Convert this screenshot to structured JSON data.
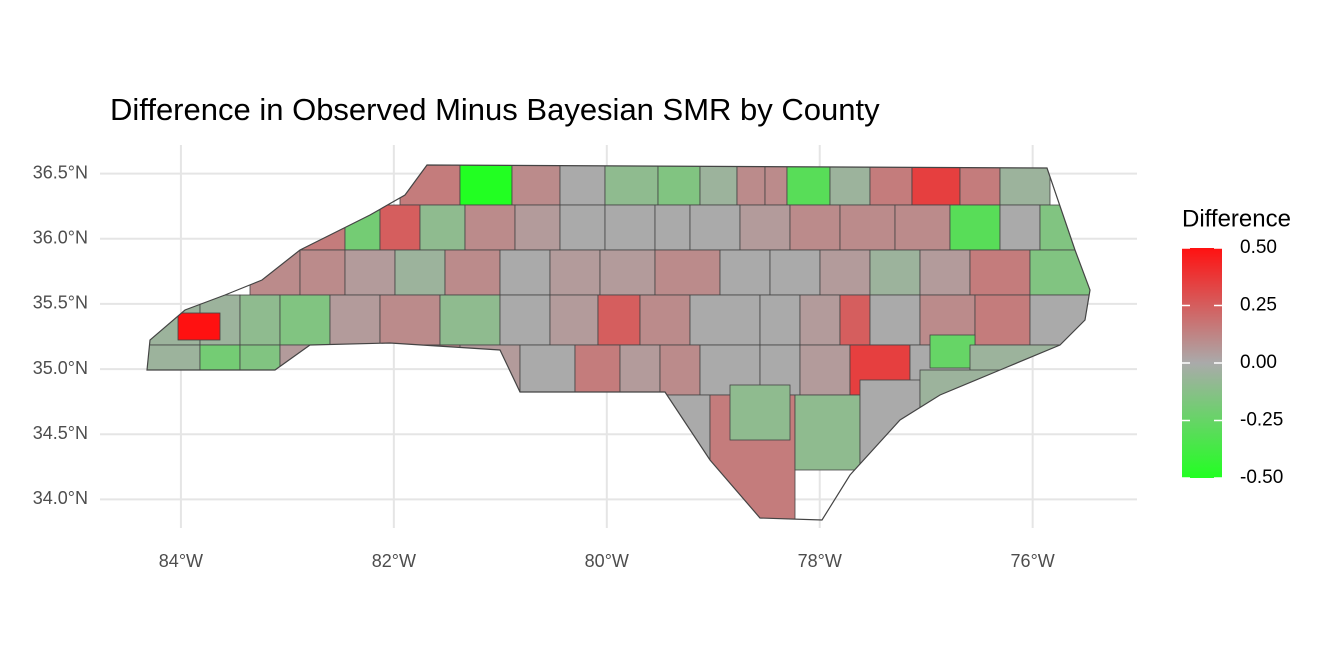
{
  "chart_data": {
    "type": "choropleth",
    "title": "Difference in Observed Minus Bayesian SMR by County",
    "legend_title": "Difference",
    "xlim": [
      -84.76,
      -75.02
    ],
    "ylim": [
      33.78,
      36.72
    ],
    "xticks": [
      {
        "value": -84,
        "label": "84°W"
      },
      {
        "value": -82,
        "label": "82°W"
      },
      {
        "value": -80,
        "label": "80°W"
      },
      {
        "value": -78,
        "label": "78°W"
      },
      {
        "value": -76,
        "label": "76°W"
      }
    ],
    "yticks": [
      {
        "value": 34.0,
        "label": "34.0°N"
      },
      {
        "value": 34.5,
        "label": "34.5°N"
      },
      {
        "value": 35.0,
        "label": "35.0°N"
      },
      {
        "value": 35.5,
        "label": "35.5°N"
      },
      {
        "value": 36.0,
        "label": "36.0°N"
      },
      {
        "value": 36.5,
        "label": "36.5°N"
      }
    ],
    "grid": true,
    "color_limits": [
      -0.5,
      0.5
    ],
    "colors": {
      "low": "#22ff22",
      "mid": "#aaaaaa",
      "high": "#ff1111"
    },
    "legend_ticks": [
      {
        "value": 0.5,
        "label": "0.50"
      },
      {
        "value": 0.25,
        "label": "0.25"
      },
      {
        "value": 0,
        "label": "0.00"
      },
      {
        "value": -0.25,
        "label": "-0.25"
      },
      {
        "value": -0.5,
        "label": "-0.50"
      }
    ],
    "values": [
      0.15,
      -0.5,
      0.1,
      0,
      -0.1,
      -0.15,
      -0.05,
      0.1,
      0.1,
      -0.3,
      -0.05,
      0.15,
      0.35,
      0.15,
      -0.05,
      0.15,
      -0.2,
      0.25,
      -0.1,
      0.1,
      0.05,
      0,
      0,
      0,
      0,
      0.05,
      0.1,
      0.1,
      0.1,
      -0.3,
      0,
      -0.15,
      0.1,
      0.1,
      0.05,
      -0.05,
      0.1,
      0,
      0.05,
      0.05,
      0.1,
      0,
      0,
      0.05,
      -0.05,
      0.05,
      0.15,
      -0.15,
      -0.05,
      -0.05,
      -0.1,
      -0.15,
      0.05,
      0.1,
      -0.1,
      0,
      0.05,
      0.25,
      0.1,
      0,
      0,
      0.05,
      0.25,
      0,
      0.1,
      0.15,
      0,
      -0.05,
      -0.2,
      -0.15,
      0.05,
      0.05,
      0.1,
      0.05,
      0,
      0.15,
      0.05,
      0.1,
      0,
      0,
      0.05,
      0.35,
      0,
      -0.25,
      -0.05,
      0,
      0.15,
      -0.1,
      -0.1,
      0,
      -0.05,
      0.5
    ]
  }
}
